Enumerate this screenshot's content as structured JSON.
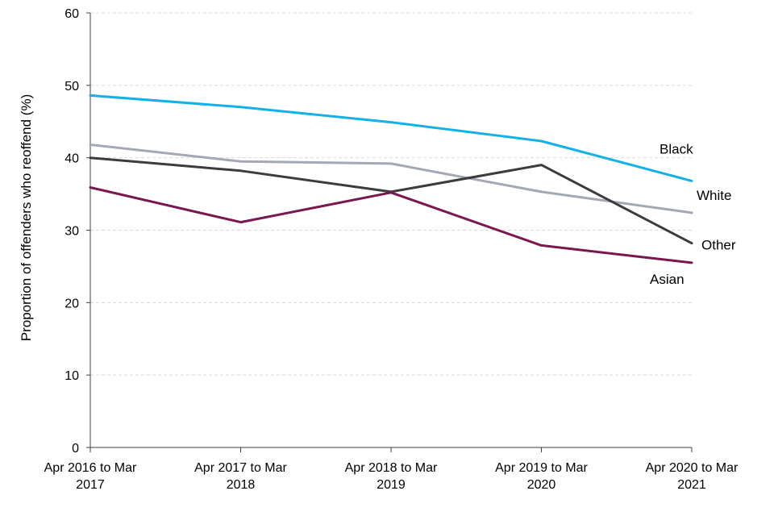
{
  "chart_data": {
    "type": "line",
    "title": "",
    "xlabel": "",
    "ylabel": "Proportion of offenders who reoffend (%)",
    "ylim": [
      0,
      60
    ],
    "yticks": [
      0,
      10,
      20,
      30,
      40,
      50,
      60
    ],
    "grid": true,
    "legend": "inline-right",
    "categories": [
      [
        "Apr 2016 to Mar",
        "2017"
      ],
      [
        "Apr 2017 to Mar",
        "2018"
      ],
      [
        "Apr 2018 to Mar",
        "2019"
      ],
      [
        "Apr 2019 to Mar",
        "2020"
      ],
      [
        "Apr 2020 to Mar",
        "2021"
      ]
    ],
    "series": [
      {
        "name": "Black",
        "color": "#12b1e6",
        "values": [
          48.6,
          47.0,
          44.9,
          42.3,
          36.8
        ]
      },
      {
        "name": "White",
        "color": "#a4a7b5",
        "values": [
          41.8,
          39.5,
          39.2,
          35.3,
          32.4
        ]
      },
      {
        "name": "Other",
        "color": "#3c3c3c",
        "values": [
          40.0,
          38.2,
          35.3,
          39.0,
          28.2
        ]
      },
      {
        "name": "Asian",
        "color": "#7a1650",
        "values": [
          35.9,
          31.1,
          35.2,
          27.9,
          25.5
        ]
      }
    ]
  }
}
